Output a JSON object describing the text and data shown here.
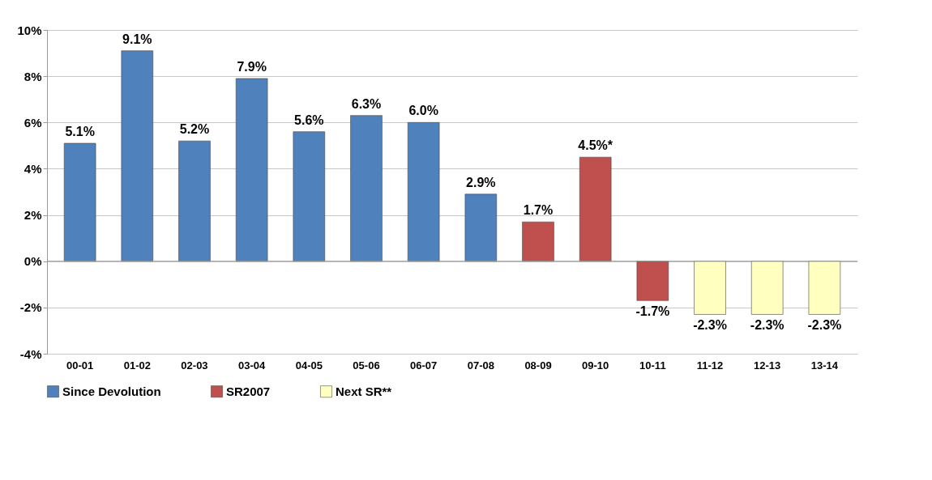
{
  "chart_data": {
    "type": "bar",
    "categories": [
      "00-01",
      "01-02",
      "02-03",
      "03-04",
      "04-05",
      "05-06",
      "06-07",
      "07-08",
      "08-09",
      "09-10",
      "10-11",
      "11-12",
      "12-13",
      "13-14"
    ],
    "series": [
      {
        "name": "Since Devolution",
        "color": "#4f81bd",
        "values": [
          5.1,
          9.1,
          5.2,
          7.9,
          5.6,
          6.3,
          6.0,
          2.9,
          null,
          null,
          null,
          null,
          null,
          null
        ],
        "value_labels": [
          "5.1%",
          "9.1%",
          "5.2%",
          "7.9%",
          "5.6%",
          "6.3%",
          "6.0%",
          "2.9%",
          null,
          null,
          null,
          null,
          null,
          null
        ]
      },
      {
        "name": "SR2007",
        "color": "#c0504d",
        "values": [
          null,
          null,
          null,
          null,
          null,
          null,
          null,
          null,
          1.7,
          4.5,
          -1.7,
          null,
          null,
          null
        ],
        "value_labels": [
          null,
          null,
          null,
          null,
          null,
          null,
          null,
          null,
          "1.7%",
          "4.5%*",
          "-1.7%",
          null,
          null,
          null
        ]
      },
      {
        "name": "Next SR**",
        "color": "#ffffc0",
        "values": [
          null,
          null,
          null,
          null,
          null,
          null,
          null,
          null,
          null,
          null,
          null,
          -2.3,
          -2.3,
          -2.3
        ],
        "value_labels": [
          null,
          null,
          null,
          null,
          null,
          null,
          null,
          null,
          null,
          null,
          null,
          "-2.3%",
          "-2.3%",
          "-2.3%"
        ]
      }
    ],
    "ylim": [
      -4,
      10
    ],
    "yticks": [
      {
        "value": -4,
        "label": "-4%"
      },
      {
        "value": -2,
        "label": "-2%"
      },
      {
        "value": 0,
        "label": "0%"
      },
      {
        "value": 2,
        "label": "2%"
      },
      {
        "value": 4,
        "label": "4%"
      },
      {
        "value": 6,
        "label": "6%"
      },
      {
        "value": 8,
        "label": "8%"
      },
      {
        "value": 10,
        "label": "10%"
      }
    ],
    "grid": "y",
    "legend": "bottom"
  }
}
